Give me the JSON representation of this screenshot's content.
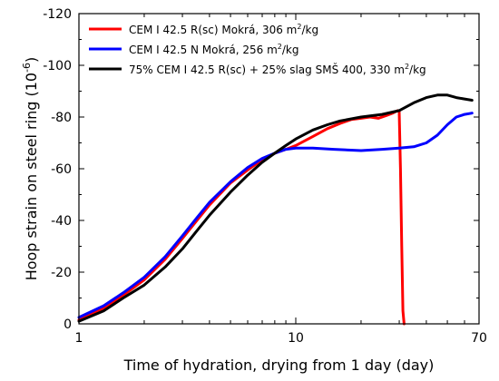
{
  "chart_data": {
    "type": "line",
    "xlabel": "Time of hydration, drying from 1 day (day)",
    "ylabel": "Hoop strain on steel ring (10",
    "ylabel_exp": "-6",
    "ylabel_close": ")",
    "x_scale": "log",
    "xlim": [
      1,
      70
    ],
    "ylim": [
      0,
      -120
    ],
    "x_ticks": [
      {
        "value": 1,
        "label": "1"
      },
      {
        "value": 10,
        "label": "10"
      },
      {
        "value": 70,
        "label": "70"
      }
    ],
    "y_ticks": [
      {
        "value": 0,
        "label": "0"
      },
      {
        "value": -20,
        "label": "-20"
      },
      {
        "value": -40,
        "label": "-40"
      },
      {
        "value": -60,
        "label": "-60"
      },
      {
        "value": -80,
        "label": "-80"
      },
      {
        "value": -100,
        "label": "-100"
      },
      {
        "value": -120,
        "label": "-120"
      }
    ],
    "legend_position": "top-left",
    "series": [
      {
        "name": "CEM I 42.5 R(sc) Mokrá, 306 m",
        "name_sup": "2",
        "name_end": "/kg",
        "color": "#ff0000",
        "x": [
          1.0,
          1.3,
          1.6,
          2.0,
          2.5,
          3.0,
          3.5,
          4.0,
          5.0,
          6.0,
          7.0,
          8.0,
          9.0,
          10.0,
          12.0,
          14.0,
          16.0,
          18.0,
          20.0,
          22.0,
          24.0,
          26.0,
          28.0,
          29.5,
          30.0,
          30.4,
          30.8,
          31.2,
          31.6
        ],
        "values": [
          -1.5,
          -6,
          -11,
          -17,
          -25,
          -33,
          -40,
          -46,
          -54.5,
          -59.5,
          -63.5,
          -66,
          -67.5,
          -69,
          -72.5,
          -75.5,
          -77.5,
          -79,
          -79.5,
          -80,
          -79.5,
          -80.5,
          -81.5,
          -82.5,
          -82,
          -60,
          -30,
          -5,
          0
        ]
      },
      {
        "name": "CEM I 42.5 N Mokrá, 256 m",
        "name_sup": "2",
        "name_end": "/kg",
        "color": "#0000ff",
        "x": [
          1.0,
          1.3,
          1.6,
          2.0,
          2.5,
          3.0,
          3.5,
          4.0,
          5.0,
          6.0,
          7.0,
          8.0,
          9.0,
          10.0,
          12.0,
          15.0,
          20.0,
          25.0,
          30.0,
          35.0,
          40.0,
          45.0,
          50.0,
          55.0,
          60.0,
          65.0
        ],
        "values": [
          -2.5,
          -7,
          -12,
          -18,
          -26,
          -34,
          -41,
          -47,
          -55,
          -60.5,
          -64,
          -66,
          -67.5,
          -68,
          -68,
          -67.5,
          -67,
          -67.5,
          -68,
          -68.5,
          -70,
          -73,
          -77,
          -80,
          -81,
          -81.5
        ]
      },
      {
        "name": "75% CEM I 42.5 R(sc) + 25% slag SMŠ 400, 330 m",
        "name_sup": "2",
        "name_end": "/kg",
        "color": "#000000",
        "x": [
          1.0,
          1.3,
          1.6,
          2.0,
          2.5,
          3.0,
          3.5,
          4.0,
          5.0,
          6.0,
          7.0,
          8.0,
          9.0,
          10.0,
          12.0,
          14.0,
          16.0,
          20.0,
          25.0,
          30.0,
          35.0,
          40.0,
          45.0,
          50.0,
          55.0,
          60.0,
          65.0
        ],
        "values": [
          -1,
          -5,
          -10,
          -15,
          -22,
          -29,
          -36,
          -42,
          -51,
          -57.5,
          -62.5,
          -66,
          -69,
          -71.5,
          -75,
          -77,
          -78.5,
          -80,
          -81,
          -82.5,
          -85.5,
          -87.5,
          -88.5,
          -88.5,
          -87.5,
          -87,
          -86.5
        ]
      }
    ]
  }
}
